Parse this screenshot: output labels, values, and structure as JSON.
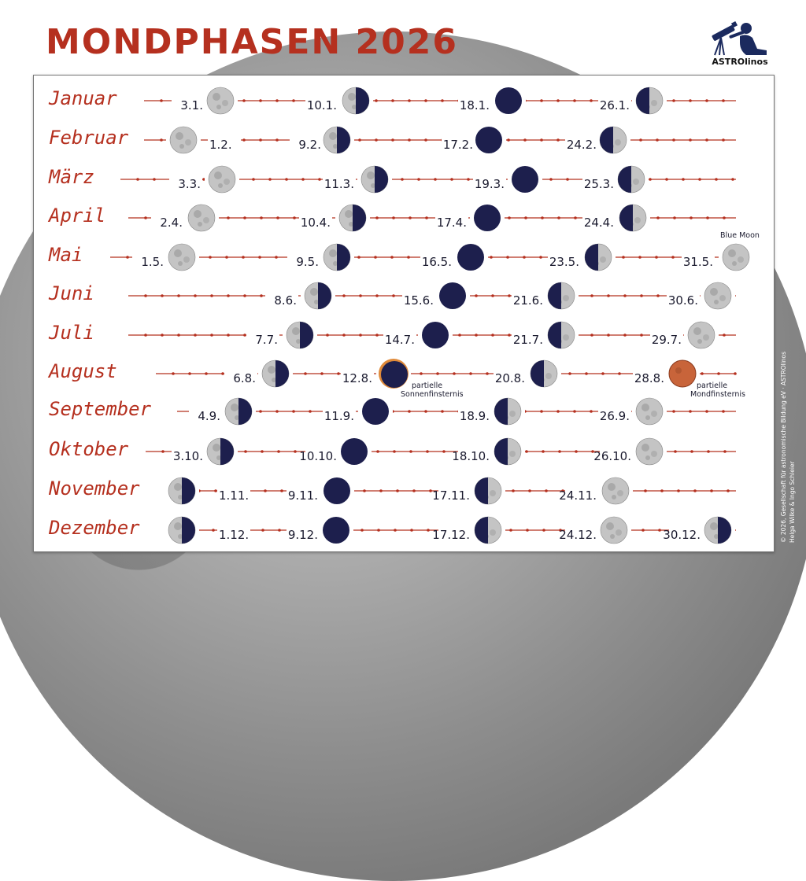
{
  "title": "MONDPHASEN 2026",
  "logo": {
    "name": "ASTROlinos",
    "icon": "telescope-kid-icon"
  },
  "copyright": {
    "line1": "© 2026, Gesellschaft für astronomische Bildung eV · ASTROlinos",
    "line2": "Helga Wilke & Ingo Schleier"
  },
  "colors": {
    "accent": "#b5301f",
    "moon_dark": "#1d1f4d",
    "moon_light": "#c4c4c4",
    "eclipse": "#c8643a"
  },
  "phase_types": {
    "full": "full-moon-icon",
    "new": "new-moon-icon",
    "first_quarter": "first-quarter-moon-icon",
    "last_quarter": "last-quarter-moon-icon"
  },
  "months": [
    {
      "name": "Januar",
      "phases": [
        {
          "date": "3.1.",
          "type": "full"
        },
        {
          "date": "10.1.",
          "type": "last_quarter"
        },
        {
          "date": "18.1.",
          "type": "new"
        },
        {
          "date": "26.1.",
          "type": "first_quarter"
        }
      ]
    },
    {
      "name": "Februar",
      "phases": [
        {
          "date": "1.2.",
          "type": "full"
        },
        {
          "date": "9.2.",
          "type": "last_quarter"
        },
        {
          "date": "17.2.",
          "type": "new"
        },
        {
          "date": "24.2.",
          "type": "first_quarter"
        }
      ]
    },
    {
      "name": "März",
      "phases": [
        {
          "date": "3.3.",
          "type": "full"
        },
        {
          "date": "11.3.",
          "type": "last_quarter"
        },
        {
          "date": "19.3.",
          "type": "new"
        },
        {
          "date": "25.3.",
          "type": "first_quarter"
        }
      ]
    },
    {
      "name": "April",
      "phases": [
        {
          "date": "2.4.",
          "type": "full"
        },
        {
          "date": "10.4.",
          "type": "last_quarter"
        },
        {
          "date": "17.4.",
          "type": "new"
        },
        {
          "date": "24.4.",
          "type": "first_quarter"
        }
      ]
    },
    {
      "name": "Mai",
      "phases": [
        {
          "date": "1.5.",
          "type": "full"
        },
        {
          "date": "9.5.",
          "type": "last_quarter"
        },
        {
          "date": "16.5.",
          "type": "new"
        },
        {
          "date": "23.5.",
          "type": "first_quarter"
        },
        {
          "date": "31.5.",
          "type": "full",
          "note": "Blue Moon"
        }
      ]
    },
    {
      "name": "Juni",
      "phases": [
        {
          "date": "8.6.",
          "type": "last_quarter"
        },
        {
          "date": "15.6.",
          "type": "new"
        },
        {
          "date": "21.6.",
          "type": "first_quarter"
        },
        {
          "date": "30.6.",
          "type": "full"
        }
      ]
    },
    {
      "name": "Juli",
      "phases": [
        {
          "date": "7.7.",
          "type": "last_quarter"
        },
        {
          "date": "14.7.",
          "type": "new"
        },
        {
          "date": "21.7.",
          "type": "first_quarter"
        },
        {
          "date": "29.7.",
          "type": "full"
        }
      ]
    },
    {
      "name": "August",
      "phases": [
        {
          "date": "6.8.",
          "type": "last_quarter"
        },
        {
          "date": "12.8.",
          "type": "new",
          "eclipse": "solar",
          "note": "partielle Sonnenfinsternis"
        },
        {
          "date": "20.8.",
          "type": "first_quarter"
        },
        {
          "date": "28.8.",
          "type": "full",
          "eclipse": "lunar",
          "note": "partielle Mondfinsternis"
        }
      ]
    },
    {
      "name": "September",
      "phases": [
        {
          "date": "4.9.",
          "type": "last_quarter"
        },
        {
          "date": "11.9.",
          "type": "new"
        },
        {
          "date": "18.9.",
          "type": "first_quarter"
        },
        {
          "date": "26.9.",
          "type": "full"
        }
      ]
    },
    {
      "name": "Oktober",
      "phases": [
        {
          "date": "3.10.",
          "type": "last_quarter"
        },
        {
          "date": "10.10.",
          "type": "new"
        },
        {
          "date": "18.10.",
          "type": "first_quarter"
        },
        {
          "date": "26.10.",
          "type": "full"
        }
      ]
    },
    {
      "name": "November",
      "phases": [
        {
          "date": "1.11.",
          "type": "last_quarter"
        },
        {
          "date": "9.11.",
          "type": "new"
        },
        {
          "date": "17.11.",
          "type": "first_quarter"
        },
        {
          "date": "24.11.",
          "type": "full"
        }
      ]
    },
    {
      "name": "Dezember",
      "phases": [
        {
          "date": "1.12.",
          "type": "last_quarter"
        },
        {
          "date": "9.12.",
          "type": "new"
        },
        {
          "date": "17.12.",
          "type": "first_quarter"
        },
        {
          "date": "24.12.",
          "type": "full"
        },
        {
          "date": "30.12.",
          "type": "last_quarter"
        }
      ]
    }
  ]
}
